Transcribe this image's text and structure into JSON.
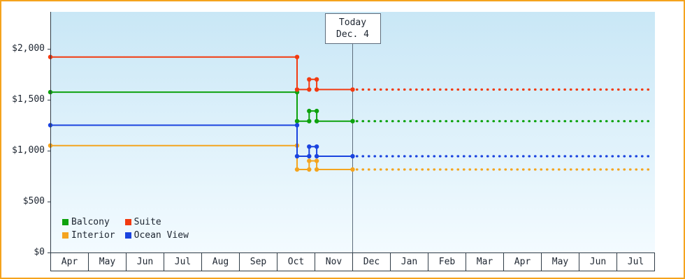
{
  "chart_data": {
    "type": "line",
    "x_axis": {
      "months": [
        "Apr",
        "May",
        "Jun",
        "Jul",
        "Aug",
        "Sep",
        "Oct",
        "Nov",
        "Dec",
        "Jan",
        "Feb",
        "Mar",
        "Apr",
        "May",
        "Jun",
        "Jul"
      ]
    },
    "y_axis": {
      "min": 0,
      "max": 2000,
      "ticks": [
        {
          "label": "$0",
          "value": 0
        },
        {
          "label": "$500",
          "value": 500
        },
        {
          "label": "$1,000",
          "value": 1000
        },
        {
          "label": "$1,500",
          "value": 1500
        },
        {
          "label": "$2,000",
          "value": 2000
        }
      ]
    },
    "today": {
      "label_line1": "Today",
      "label_line2": "Dec. 4",
      "x_month": 8.0
    },
    "series": [
      {
        "name": "Balcony",
        "color": "#0da20d",
        "points_month_price": [
          [
            0,
            1575
          ],
          [
            6.53,
            1575
          ],
          [
            6.53,
            1290
          ],
          [
            6.85,
            1290
          ],
          [
            6.85,
            1390
          ],
          [
            7.05,
            1390
          ],
          [
            7.05,
            1290
          ],
          [
            8.0,
            1290
          ]
        ],
        "forecast_price": 1290
      },
      {
        "name": "Suite",
        "color": "#f23a10",
        "points_month_price": [
          [
            0,
            1920
          ],
          [
            6.53,
            1920
          ],
          [
            6.53,
            1600
          ],
          [
            6.85,
            1600
          ],
          [
            6.85,
            1700
          ],
          [
            7.05,
            1700
          ],
          [
            7.05,
            1600
          ],
          [
            8.0,
            1600
          ]
        ],
        "forecast_price": 1600
      },
      {
        "name": "Interior",
        "color": "#f4a41e",
        "points_month_price": [
          [
            0,
            1050
          ],
          [
            6.53,
            1050
          ],
          [
            6.53,
            815
          ],
          [
            6.85,
            815
          ],
          [
            6.85,
            900
          ],
          [
            7.05,
            900
          ],
          [
            7.05,
            815
          ],
          [
            8.0,
            815
          ]
        ],
        "forecast_price": 815
      },
      {
        "name": "Ocean View",
        "color": "#1a43df",
        "points_month_price": [
          [
            0,
            1250
          ],
          [
            6.53,
            1250
          ],
          [
            6.53,
            945
          ],
          [
            6.85,
            945
          ],
          [
            6.85,
            1040
          ],
          [
            7.05,
            1040
          ],
          [
            7.05,
            945
          ],
          [
            8.0,
            945
          ]
        ],
        "forecast_price": 945
      }
    ]
  },
  "style": {
    "frame_border_color": "#f5a31d",
    "plot_bg_top": "#c9e7f6",
    "plot_bg_bottom": "#f3fbff",
    "axis_color": "#2f3b46",
    "today_line_color": "#5d6c7b",
    "text_color": "#1d2530"
  }
}
